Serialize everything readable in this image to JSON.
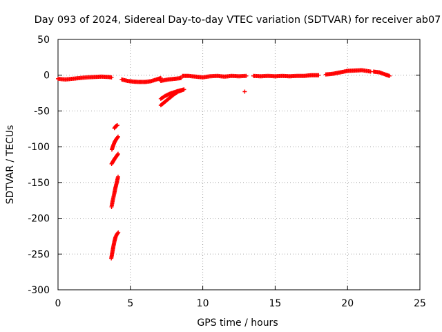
{
  "chart_data": {
    "type": "scatter",
    "title": "Day 093 of 2024, Sidereal Day-to-day VTEC variation (SDTVAR) for receiver ab07",
    "xlabel": "GPS time / hours",
    "ylabel": "SDTVAR / TECUs",
    "xlim": [
      0,
      25
    ],
    "ylim": [
      -300,
      50
    ],
    "xticks": [
      "0",
      "5",
      "10",
      "15",
      "20",
      "25"
    ],
    "yticks": [
      "50",
      "0",
      "-50",
      "-100",
      "-150",
      "-200",
      "-250",
      "-300"
    ],
    "xtick_values": [
      0,
      5,
      10,
      15,
      20,
      25
    ],
    "ytick_values": [
      50,
      0,
      -50,
      -100,
      -150,
      -200,
      -250,
      -300
    ],
    "grid": true,
    "marker": "+",
    "series": [
      {
        "name": "SDTVAR",
        "color": "#ff0000",
        "segments": [
          {
            "x": [
              0,
              0.5,
              1,
              1.5,
              2,
              2.5,
              3,
              3.5,
              3.7
            ],
            "y": [
              -5,
              -6,
              -5,
              -4,
              -3,
              -2.5,
              -2,
              -2.5,
              -3
            ]
          },
          {
            "x": [
              4.4,
              4.8,
              5.2,
              5.6,
              6,
              6.4,
              6.8,
              7.1
            ],
            "y": [
              -6,
              -8,
              -9,
              -9.5,
              -9.5,
              -8.5,
              -6,
              -4
            ]
          },
          {
            "x": [
              7.1,
              7.6,
              8.1,
              8.5
            ],
            "y": [
              -8,
              -6,
              -5,
              -4
            ]
          },
          {
            "x": [
              8.6,
              9,
              9.5,
              10,
              10.5,
              11,
              11.5,
              12,
              12.5,
              13
            ],
            "y": [
              -1,
              -1,
              -2,
              -3,
              -1.5,
              -1,
              -2,
              -1,
              -1.5,
              -1
            ]
          },
          {
            "x": [
              13.5,
              14,
              14.5,
              15,
              15.5,
              16,
              16.5,
              17,
              17.5,
              18
            ],
            "y": [
              -1,
              -1.5,
              -1,
              -1.5,
              -1,
              -1.5,
              -1,
              -1,
              0,
              0
            ]
          },
          {
            "x": [
              18.5,
              19,
              19.5,
              20,
              20.5,
              21,
              21.3,
              21.6
            ],
            "y": [
              1,
              2,
              4,
              6,
              6.5,
              7,
              6,
              5
            ]
          },
          {
            "x": [
              21.8,
              22.2,
              22.6,
              22.9
            ],
            "y": [
              5,
              4,
              1,
              -1
            ]
          },
          {
            "x": [
              3.68,
              3.75,
              3.82,
              3.9,
              3.98,
              4.08,
              4.16
            ],
            "y": [
              -256,
              -248,
              -240,
              -232,
              -226,
              -222,
              -220
            ]
          },
          {
            "x": [
              3.7,
              3.78,
              3.88,
              3.96,
              4.06,
              4.15
            ],
            "y": [
              -184,
              -175,
              -166,
              -158,
              -150,
              -142
            ]
          },
          {
            "x": [
              3.7,
              3.82,
              3.94,
              4.05,
              4.15
            ],
            "y": [
              -124,
              -120,
              -116,
              -113,
              -110
            ]
          },
          {
            "x": [
              3.72,
              3.82,
              3.92,
              4.04,
              4.15
            ],
            "y": [
              -104,
              -98,
              -93,
              -89,
              -86
            ]
          },
          {
            "x": [
              3.9,
              4.0,
              4.1
            ],
            "y": [
              -74,
              -71,
              -70
            ]
          },
          {
            "x": [
              7.1,
              7.4,
              7.7,
              8.0,
              8.3,
              8.7
            ],
            "y": [
              -42,
              -37,
              -32,
              -27,
              -23,
              -20
            ]
          },
          {
            "x": [
              7.1,
              7.4,
              7.7,
              8.0,
              8.3,
              8.7
            ],
            "y": [
              -33,
              -29,
              -26,
              -24,
              -22,
              -20
            ]
          },
          {
            "x": [
              12.9
            ],
            "y": [
              -23
            ]
          }
        ]
      }
    ]
  }
}
